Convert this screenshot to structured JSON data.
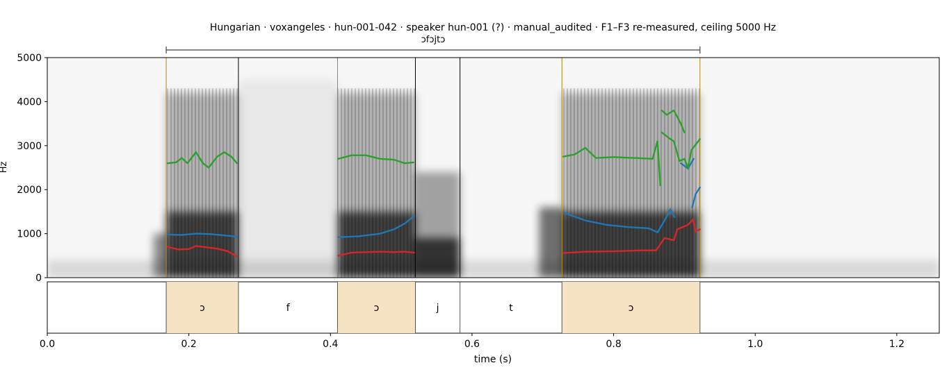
{
  "chart_data": {
    "type": "spectrogram",
    "title": "Hungarian · voxangeles · hun-001-042 · speaker hun-001 (?) · manual_audited · F1–F3 re-measured, ceiling 5000 Hz",
    "word_label": "ɔfɔjtɔ",
    "ylabel": "Hz",
    "xlabel": "time (s)",
    "xlim": [
      0.0,
      1.26
    ],
    "ylim": [
      0,
      5000
    ],
    "x_ticks": [
      "0.0",
      "0.2",
      "0.4",
      "0.6",
      "0.8",
      "1.0",
      "1.2"
    ],
    "y_ticks": [
      "0",
      "1000",
      "2000",
      "3000",
      "4000",
      "5000"
    ],
    "word_span": [
      0.168,
      0.922
    ],
    "boundaries": [
      0.168,
      0.27,
      0.41,
      0.52,
      0.583,
      0.727,
      0.922
    ],
    "segments": [
      {
        "label": "ɔ",
        "start": 0.168,
        "end": 0.27,
        "vowel": true
      },
      {
        "label": "f",
        "start": 0.27,
        "end": 0.41,
        "vowel": false
      },
      {
        "label": "ɔ",
        "start": 0.41,
        "end": 0.52,
        "vowel": true
      },
      {
        "label": "j",
        "start": 0.52,
        "end": 0.583,
        "vowel": false
      },
      {
        "label": "t",
        "start": 0.583,
        "end": 0.727,
        "vowel": false
      },
      {
        "label": "ɔ",
        "start": 0.727,
        "end": 0.922,
        "vowel": true
      }
    ],
    "series": [
      {
        "color": "#d62728",
        "tracks": [
          [
            [
              0.17,
              700
            ],
            [
              0.185,
              640
            ],
            [
              0.2,
              650
            ],
            [
              0.21,
              720
            ],
            [
              0.225,
              690
            ],
            [
              0.24,
              660
            ],
            [
              0.255,
              600
            ],
            [
              0.268,
              480
            ]
          ],
          [
            [
              0.411,
              500
            ],
            [
              0.43,
              570
            ],
            [
              0.45,
              580
            ],
            [
              0.47,
              590
            ],
            [
              0.49,
              580
            ],
            [
              0.505,
              590
            ],
            [
              0.518,
              570
            ]
          ],
          [
            [
              0.729,
              560
            ],
            [
              0.76,
              590
            ],
            [
              0.8,
              600
            ],
            [
              0.84,
              620
            ],
            [
              0.86,
              620
            ],
            [
              0.872,
              900
            ],
            [
              0.885,
              850
            ],
            [
              0.89,
              1100
            ],
            [
              0.905,
              1200
            ],
            [
              0.912,
              1320
            ],
            [
              0.916,
              1050
            ],
            [
              0.922,
              1100
            ]
          ]
        ]
      },
      {
        "color": "#1f77b4",
        "tracks": [
          [
            [
              0.17,
              980
            ],
            [
              0.19,
              970
            ],
            [
              0.21,
              1000
            ],
            [
              0.23,
              990
            ],
            [
              0.25,
              960
            ],
            [
              0.268,
              930
            ]
          ],
          [
            [
              0.411,
              920
            ],
            [
              0.44,
              940
            ],
            [
              0.47,
              1000
            ],
            [
              0.49,
              1100
            ],
            [
              0.505,
              1230
            ],
            [
              0.518,
              1400
            ]
          ],
          [
            [
              0.729,
              1480
            ],
            [
              0.76,
              1300
            ],
            [
              0.79,
              1200
            ],
            [
              0.82,
              1150
            ],
            [
              0.85,
              1120
            ],
            [
              0.862,
              1030
            ],
            [
              0.872,
              1300
            ],
            [
              0.88,
              1550
            ],
            [
              0.886,
              1380
            ]
          ],
          [
            [
              0.895,
              2600
            ],
            [
              0.905,
              2480
            ],
            [
              0.913,
              2700
            ]
          ],
          [
            [
              0.911,
              1600
            ],
            [
              0.916,
              1900
            ],
            [
              0.922,
              2050
            ]
          ]
        ]
      },
      {
        "color": "#2ca02c",
        "tracks": [
          [
            [
              0.17,
              2600
            ],
            [
              0.182,
              2620
            ],
            [
              0.19,
              2720
            ],
            [
              0.198,
              2600
            ],
            [
              0.21,
              2850
            ],
            [
              0.22,
              2600
            ],
            [
              0.228,
              2500
            ],
            [
              0.24,
              2750
            ],
            [
              0.25,
              2850
            ],
            [
              0.26,
              2750
            ],
            [
              0.268,
              2600
            ]
          ],
          [
            [
              0.411,
              2700
            ],
            [
              0.43,
              2780
            ],
            [
              0.45,
              2780
            ],
            [
              0.47,
              2700
            ],
            [
              0.49,
              2680
            ],
            [
              0.505,
              2600
            ],
            [
              0.518,
              2620
            ]
          ],
          [
            [
              0.729,
              2750
            ],
            [
              0.745,
              2800
            ],
            [
              0.76,
              2950
            ],
            [
              0.775,
              2720
            ],
            [
              0.8,
              2740
            ],
            [
              0.83,
              2720
            ],
            [
              0.855,
              2700
            ],
            [
              0.862,
              3100
            ],
            [
              0.866,
              2100
            ]
          ],
          [
            [
              0.868,
              3300
            ],
            [
              0.88,
              3150
            ],
            [
              0.885,
              3100
            ],
            [
              0.893,
              2650
            ],
            [
              0.9,
              2700
            ],
            [
              0.905,
              2500
            ],
            [
              0.91,
              2900
            ],
            [
              0.922,
              3150
            ]
          ],
          [
            [
              0.868,
              3800
            ],
            [
              0.875,
              3700
            ],
            [
              0.885,
              3800
            ],
            [
              0.895,
              3500
            ],
            [
              0.9,
              3300
            ]
          ]
        ]
      }
    ]
  }
}
